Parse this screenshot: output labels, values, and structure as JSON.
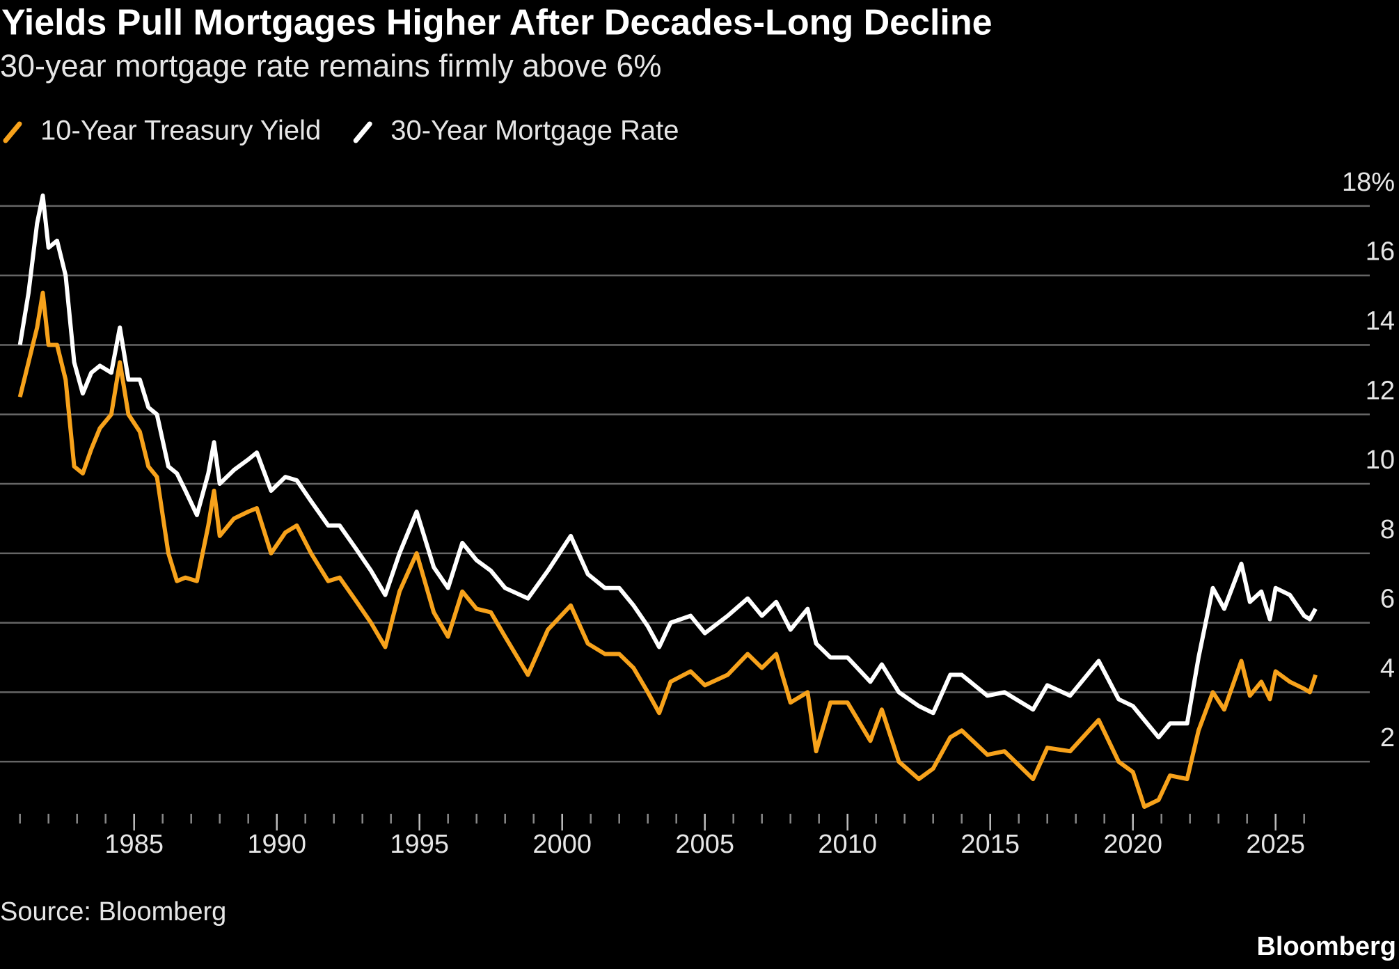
{
  "chart_data": {
    "type": "line",
    "title": "Yields Pull Mortgages Higher After Decades-Long Decline",
    "subtitle": "30-year mortgage rate remains firmly above 6%",
    "source": "Source: Bloomberg",
    "brand": "Bloomberg",
    "grid": true,
    "xlim": [
      1980.3,
      2028.3
    ],
    "xticks": [
      1985,
      1990,
      1995,
      2000,
      2005,
      2010,
      2015,
      2020,
      2025
    ],
    "x_minor_ticks": [
      1981,
      1982,
      1983,
      1984,
      1985,
      1986,
      1987,
      1988,
      1989,
      1990,
      1991,
      1992,
      1993,
      1994,
      1995,
      1996,
      1997,
      1998,
      1999,
      2000,
      2001,
      2002,
      2003,
      2004,
      2005,
      2006,
      2007,
      2008,
      2009,
      2010,
      2011,
      2012,
      2013,
      2014,
      2015,
      2016,
      2017,
      2018,
      2019,
      2020,
      2021,
      2022,
      2023,
      2024,
      2025,
      2026
    ],
    "ylim": [
      0.5,
      18.8
    ],
    "yticks": [
      2,
      4,
      6,
      8,
      10,
      12,
      14,
      16,
      {
        "value": 18,
        "label": "18%"
      }
    ],
    "x": [
      1981.0,
      1981.3,
      1981.6,
      1981.8,
      1982.0,
      1982.3,
      1982.6,
      1982.9,
      1983.2,
      1983.5,
      1983.8,
      1984.2,
      1984.5,
      1984.8,
      1985.2,
      1985.5,
      1985.8,
      1986.2,
      1986.5,
      1986.8,
      1987.2,
      1987.6,
      1987.8,
      1988.0,
      1988.5,
      1989.0,
      1989.3,
      1989.8,
      1990.3,
      1990.7,
      1991.2,
      1991.8,
      1992.2,
      1992.8,
      1993.3,
      1993.8,
      1994.3,
      1994.9,
      1995.5,
      1996.0,
      1996.5,
      1997.0,
      1997.5,
      1998.0,
      1998.8,
      1999.5,
      2000.3,
      2000.9,
      2001.5,
      2002.0,
      2002.5,
      2003.0,
      2003.4,
      2003.8,
      2004.5,
      2005.0,
      2005.8,
      2006.5,
      2007.0,
      2007.5,
      2008.0,
      2008.6,
      2008.9,
      2009.4,
      2010.0,
      2010.8,
      2011.2,
      2011.8,
      2012.5,
      2013.0,
      2013.6,
      2014.0,
      2014.9,
      2015.5,
      2016.5,
      2017.0,
      2017.8,
      2018.8,
      2019.5,
      2020.0,
      2020.4,
      2020.9,
      2021.3,
      2021.9,
      2022.3,
      2022.8,
      2023.2,
      2023.8,
      2024.1,
      2024.5,
      2024.8,
      2025.0,
      2025.5,
      2026.0,
      2026.2,
      2026.4
    ],
    "series": [
      {
        "name": "10-Year Treasury Yield",
        "color": "#f7a21b",
        "values": [
          12.5,
          13.5,
          14.5,
          15.5,
          14.0,
          14.0,
          13.0,
          10.5,
          10.3,
          11.0,
          11.6,
          12.0,
          13.5,
          12.0,
          11.5,
          10.5,
          10.2,
          8.0,
          7.2,
          7.3,
          7.2,
          8.8,
          9.8,
          8.5,
          9.0,
          9.2,
          9.3,
          8.0,
          8.6,
          8.8,
          8.0,
          7.2,
          7.3,
          6.6,
          6.0,
          5.3,
          6.9,
          8.0,
          6.3,
          5.6,
          6.9,
          6.4,
          6.3,
          5.6,
          4.5,
          5.8,
          6.5,
          5.4,
          5.1,
          5.1,
          4.7,
          4.0,
          3.4,
          4.3,
          4.6,
          4.2,
          4.5,
          5.1,
          4.7,
          5.1,
          3.7,
          4.0,
          2.3,
          3.7,
          3.7,
          2.6,
          3.5,
          2.0,
          1.5,
          1.8,
          2.7,
          2.9,
          2.2,
          2.3,
          1.5,
          2.4,
          2.3,
          3.2,
          2.0,
          1.7,
          0.7,
          0.9,
          1.6,
          1.5,
          2.9,
          4.0,
          3.5,
          4.9,
          3.9,
          4.3,
          3.8,
          4.6,
          4.3,
          4.1,
          4.0,
          4.5
        ]
      },
      {
        "name": "30-Year Mortgage Rate",
        "color": "#ffffff",
        "values": [
          14.0,
          15.5,
          17.5,
          18.3,
          16.8,
          17.0,
          16.0,
          13.5,
          12.6,
          13.2,
          13.4,
          13.2,
          14.5,
          13.0,
          13.0,
          12.2,
          12.0,
          10.5,
          10.3,
          9.8,
          9.1,
          10.3,
          11.2,
          10.0,
          10.4,
          10.7,
          10.9,
          9.8,
          10.2,
          10.1,
          9.5,
          8.8,
          8.8,
          8.1,
          7.5,
          6.8,
          8.0,
          9.2,
          7.6,
          7.0,
          8.3,
          7.8,
          7.5,
          7.0,
          6.7,
          7.5,
          8.5,
          7.4,
          7.0,
          7.0,
          6.5,
          5.9,
          5.3,
          6.0,
          6.2,
          5.7,
          6.2,
          6.7,
          6.2,
          6.6,
          5.8,
          6.4,
          5.4,
          5.0,
          5.0,
          4.3,
          4.8,
          4.0,
          3.6,
          3.4,
          4.5,
          4.5,
          3.9,
          4.0,
          3.5,
          4.2,
          3.9,
          4.9,
          3.8,
          3.6,
          3.2,
          2.7,
          3.1,
          3.1,
          5.0,
          7.0,
          6.4,
          7.7,
          6.6,
          6.9,
          6.1,
          7.0,
          6.8,
          6.2,
          6.1,
          6.4
        ]
      }
    ]
  }
}
